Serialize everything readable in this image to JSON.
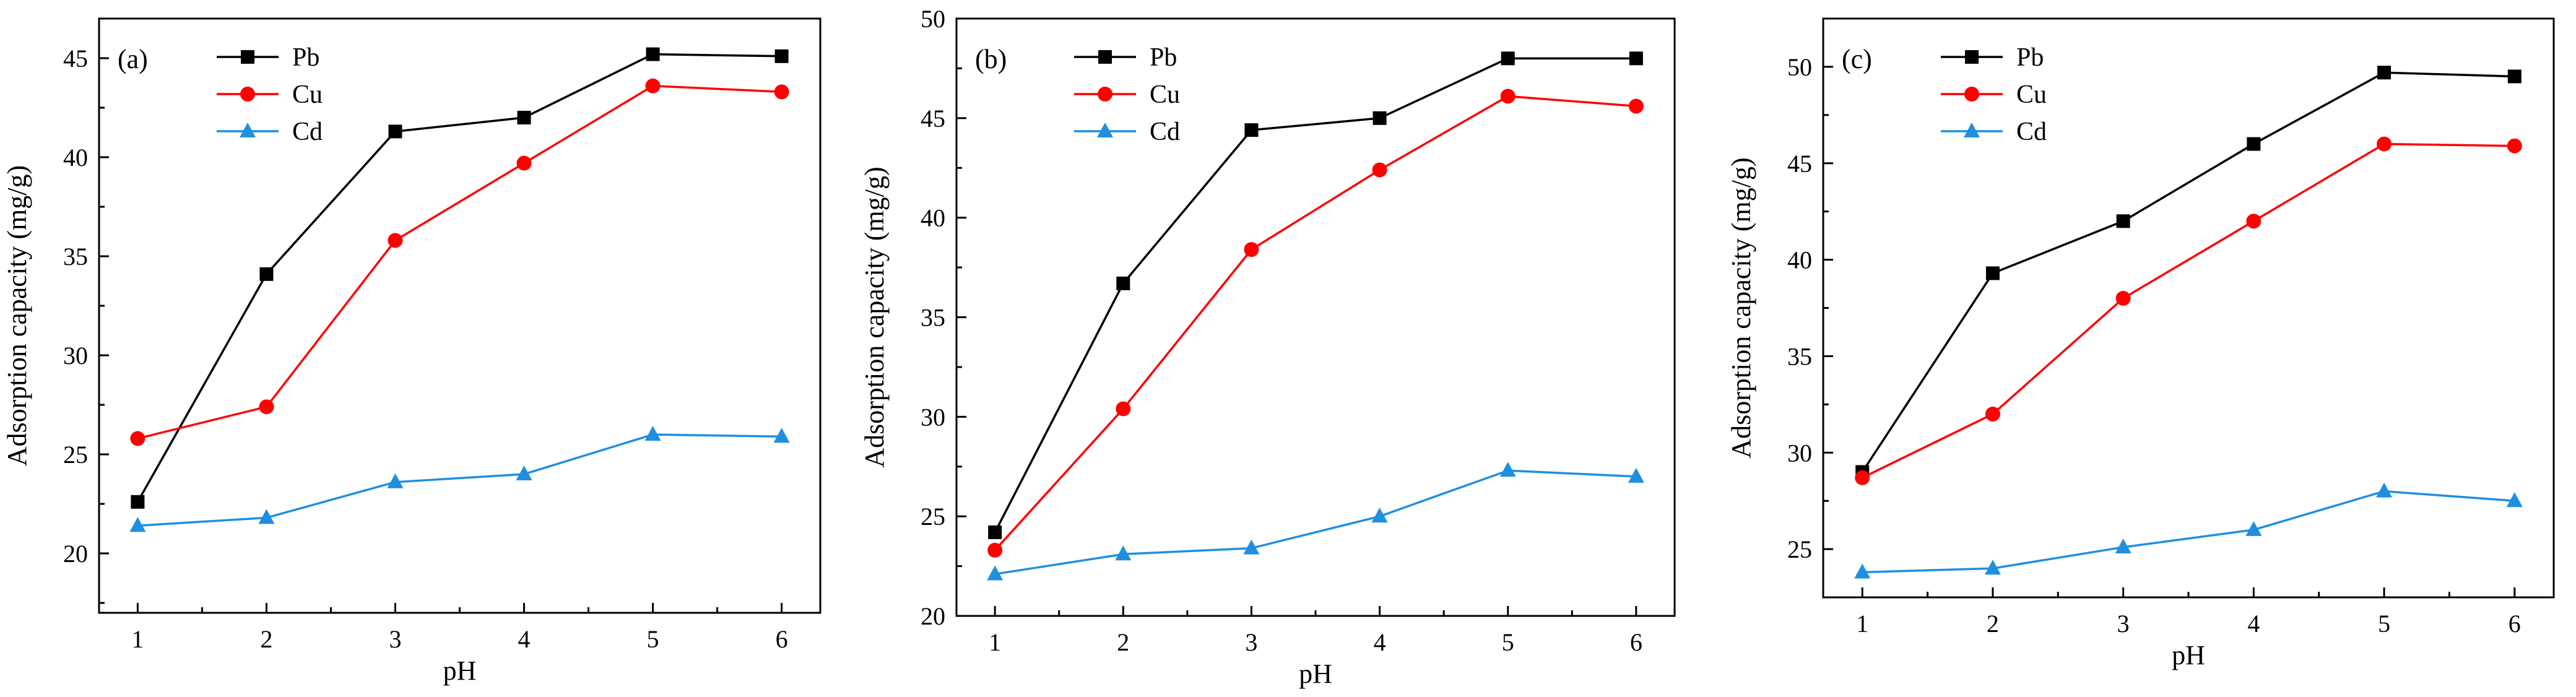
{
  "chart_data": [
    {
      "type": "line",
      "panel_label": "(a)",
      "xlabel": "pH",
      "ylabel": "Adsorption capacity (mg/g)",
      "x": [
        1,
        2,
        3,
        4,
        5,
        6
      ],
      "xlim": [
        0.7,
        6.3
      ],
      "ylim": [
        17,
        47
      ],
      "yticks": [
        20,
        25,
        30,
        35,
        40,
        45
      ],
      "legend_position": "top-left",
      "series": [
        {
          "name": "Pb",
          "color": "#000000",
          "marker": "square",
          "values": [
            22.6,
            34.1,
            41.3,
            42.0,
            45.2,
            45.1
          ]
        },
        {
          "name": "Cu",
          "color": "#ff0000",
          "marker": "circle",
          "values": [
            25.8,
            27.4,
            35.8,
            39.7,
            43.6,
            43.3
          ]
        },
        {
          "name": "Cd",
          "color": "#1f8fe0",
          "marker": "triangle",
          "values": [
            21.4,
            21.8,
            23.6,
            24.0,
            26.0,
            25.9
          ]
        }
      ]
    },
    {
      "type": "line",
      "panel_label": "(b)",
      "xlabel": "pH",
      "ylabel": "Adsorption capacity (mg/g)",
      "x": [
        1,
        2,
        3,
        4,
        5,
        6
      ],
      "xlim": [
        0.7,
        6.3
      ],
      "ylim": [
        20,
        50
      ],
      "yticks": [
        20,
        25,
        30,
        35,
        40,
        45,
        50
      ],
      "legend_position": "top-left",
      "series": [
        {
          "name": "Pb",
          "color": "#000000",
          "marker": "square",
          "values": [
            24.2,
            36.7,
            44.4,
            45.0,
            48.0,
            48.0
          ]
        },
        {
          "name": "Cu",
          "color": "#ff0000",
          "marker": "circle",
          "values": [
            23.3,
            30.4,
            38.4,
            42.4,
            46.1,
            45.6
          ]
        },
        {
          "name": "Cd",
          "color": "#1f8fe0",
          "marker": "triangle",
          "values": [
            22.1,
            23.1,
            23.4,
            25.0,
            27.3,
            27.0
          ]
        }
      ]
    },
    {
      "type": "line",
      "panel_label": "(c)",
      "xlabel": "pH",
      "ylabel": "Adsorption capacity (mg/g)",
      "x": [
        1,
        2,
        3,
        4,
        5,
        6
      ],
      "xlim": [
        0.7,
        6.3
      ],
      "ylim": [
        22.5,
        52.5
      ],
      "yticks": [
        25,
        30,
        35,
        40,
        45,
        50
      ],
      "legend_position": "top-left",
      "series": [
        {
          "name": "Pb",
          "color": "#000000",
          "marker": "square",
          "values": [
            29.0,
            39.3,
            42.0,
            46.0,
            49.7,
            49.5
          ]
        },
        {
          "name": "Cu",
          "color": "#ff0000",
          "marker": "circle",
          "values": [
            28.7,
            32.0,
            38.0,
            42.0,
            46.0,
            45.9
          ]
        },
        {
          "name": "Cd",
          "color": "#1f8fe0",
          "marker": "triangle",
          "values": [
            23.8,
            24.0,
            25.1,
            26.0,
            28.0,
            27.5
          ]
        }
      ]
    }
  ]
}
